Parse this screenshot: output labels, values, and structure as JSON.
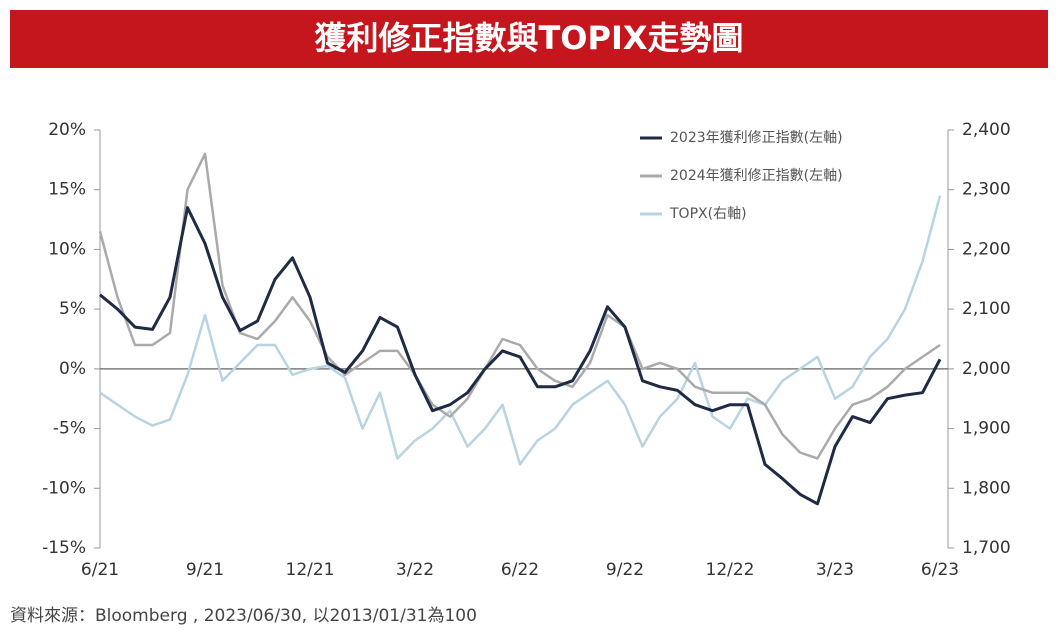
{
  "chart_data": {
    "type": "line",
    "title": "獲利修正指數與TOPIX走勢圖",
    "source": "資料來源：Bloomberg , 2023/06/30, 以2013/01/31為100",
    "legend": "upper right",
    "categories": [
      "6/21",
      null,
      null,
      null,
      null,
      null,
      "9/21",
      null,
      null,
      null,
      null,
      null,
      "12/21",
      null,
      null,
      null,
      null,
      null,
      "3/22",
      null,
      null,
      null,
      null,
      null,
      "6/22",
      null,
      null,
      null,
      null,
      null,
      "9/22",
      null,
      null,
      null,
      null,
      null,
      "12/22",
      null,
      null,
      null,
      null,
      null,
      "3/23",
      null,
      null,
      null,
      null,
      null,
      "6/23"
    ],
    "ylim": [
      -15,
      20
    ],
    "yticks": [
      {
        "value": -15,
        "label": "-15%"
      },
      {
        "value": -10,
        "label": "-10%"
      },
      {
        "value": -5,
        "label": "-5%"
      },
      {
        "value": 0,
        "label": "0%"
      },
      {
        "value": 5,
        "label": "5%"
      },
      {
        "value": 10,
        "label": "10%"
      },
      {
        "value": 15,
        "label": "15%"
      },
      {
        "value": 20,
        "label": "20%"
      }
    ],
    "y2lim": [
      1700,
      2400
    ],
    "y2ticks": [
      {
        "value": 1700,
        "label": "1,700"
      },
      {
        "value": 1800,
        "label": "1,800"
      },
      {
        "value": 1900,
        "label": "1,900"
      },
      {
        "value": 2000,
        "label": "2,000"
      },
      {
        "value": 2100,
        "label": "2,100"
      },
      {
        "value": 2200,
        "label": "2,200"
      },
      {
        "value": 2300,
        "label": "2,300"
      },
      {
        "value": 2400,
        "label": "2,400"
      }
    ],
    "series": [
      {
        "name": "TOPX(右軸)",
        "color": "#b8d4e2",
        "axis": "y2",
        "values": [
          1960,
          1940,
          1920,
          1905,
          1915,
          1990,
          2090,
          1980,
          2010,
          2040,
          2040,
          1990,
          2000,
          2005,
          1985,
          1900,
          1960,
          1850,
          1880,
          1900,
          1930,
          1870,
          1900,
          1940,
          1840,
          1880,
          1900,
          1940,
          1960,
          1980,
          1940,
          1870,
          1920,
          1950,
          2010,
          1920,
          1900,
          1950,
          1940,
          1980,
          2000,
          2020,
          1950,
          1970,
          2020,
          2050,
          2100,
          2180,
          2290
        ]
      },
      {
        "name": "2024年獲利修正指數(左軸)",
        "color": "#aaaaaa",
        "values": [
          11.5,
          6,
          2,
          2,
          3,
          15,
          18,
          7,
          3,
          2.5,
          4,
          6,
          4,
          1,
          -0.5,
          0.5,
          1.5,
          1.5,
          -0.5,
          -3,
          -4,
          -2.5,
          0,
          2.5,
          2,
          0,
          -1,
          -1.5,
          0.5,
          4.5,
          3.5,
          0,
          0.5,
          0,
          -1.5,
          -2,
          -2,
          -2,
          -3,
          -5.5,
          -7,
          -7.5,
          -5,
          -3,
          -2.5,
          -1.5,
          0,
          1,
          2
        ]
      },
      {
        "name": "2023年獲利修正指數(左軸)",
        "color": "#1f2a44",
        "values": [
          6.2,
          5,
          3.5,
          3.3,
          6,
          13.5,
          10.5,
          6,
          3.2,
          4,
          7.5,
          9.3,
          6,
          0.5,
          -0.3,
          1.5,
          4.3,
          3.5,
          -0.5,
          -3.5,
          -3,
          -2,
          0,
          1.5,
          1,
          -1.5,
          -1.5,
          -1,
          1.5,
          5.2,
          3.5,
          -1,
          -1.5,
          -1.8,
          -3,
          -3.5,
          -3,
          -3,
          -8,
          -9.2,
          -10.5,
          -11.3,
          -6.5,
          -4,
          -4.5,
          -2.5,
          -2.2,
          -2,
          0.8
        ]
      }
    ]
  }
}
